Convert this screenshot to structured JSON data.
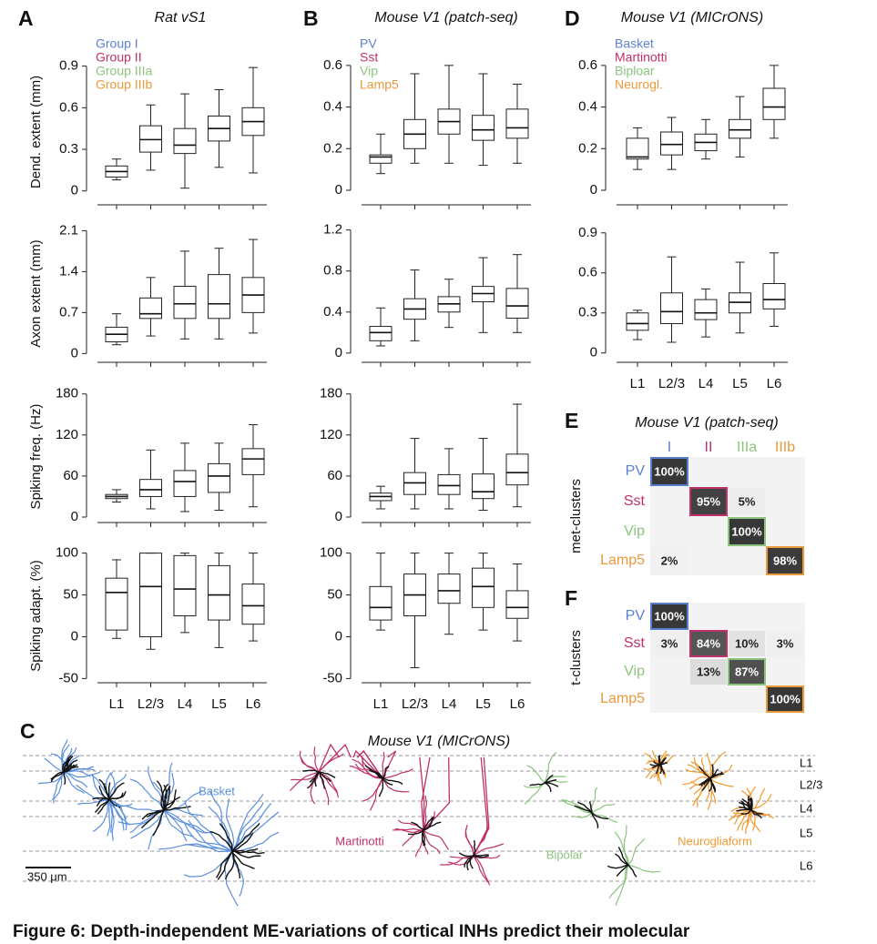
{
  "panel_letters": [
    "A",
    "B",
    "C",
    "D",
    "E",
    "F"
  ],
  "chart_data": [
    {
      "type": "box",
      "title": "Rat vS1",
      "ylabel": "Dend. extent (mm)",
      "categories": [
        null,
        null,
        null,
        null,
        null
      ],
      "ylim": [
        -0.1,
        0.95
      ],
      "yticks": [
        0,
        0.3,
        0.6,
        0.9
      ],
      "legend": [
        {
          "name": "Group I",
          "color": "#5b7fd0"
        },
        {
          "name": "Group II",
          "color": "#c0306a"
        },
        {
          "name": "Group IIIa",
          "color": "#8cc47e"
        },
        {
          "name": "Group IIIb",
          "color": "#e89a3c"
        }
      ],
      "boxes": [
        {
          "low": 0.08,
          "q1": 0.1,
          "median": 0.14,
          "q3": 0.18,
          "high": 0.23
        },
        {
          "low": 0.15,
          "q1": 0.28,
          "median": 0.37,
          "q3": 0.47,
          "high": 0.62
        },
        {
          "low": 0.02,
          "q1": 0.27,
          "median": 0.33,
          "q3": 0.45,
          "high": 0.7
        },
        {
          "low": 0.17,
          "q1": 0.36,
          "median": 0.45,
          "q3": 0.54,
          "high": 0.73
        },
        {
          "low": 0.13,
          "q1": 0.4,
          "median": 0.5,
          "q3": 0.6,
          "high": 0.89
        }
      ]
    },
    {
      "type": "box",
      "ylabel": "Axon extent (mm)",
      "categories": [
        null,
        null,
        null,
        null,
        null
      ],
      "ylim": [
        -0.15,
        2.2
      ],
      "yticks": [
        0,
        0.7,
        1.4,
        2.1
      ],
      "boxes": [
        {
          "low": 0.15,
          "q1": 0.2,
          "median": 0.33,
          "q3": 0.45,
          "high": 0.68
        },
        {
          "low": 0.3,
          "q1": 0.6,
          "median": 0.68,
          "q3": 0.95,
          "high": 1.3
        },
        {
          "low": 0.25,
          "q1": 0.6,
          "median": 0.85,
          "q3": 1.15,
          "high": 1.75
        },
        {
          "low": 0.25,
          "q1": 0.6,
          "median": 0.85,
          "q3": 1.35,
          "high": 1.8
        },
        {
          "low": 0.35,
          "q1": 0.7,
          "median": 1.0,
          "q3": 1.3,
          "high": 1.95
        }
      ]
    },
    {
      "type": "box",
      "ylabel": "Spiking freq. (Hz)",
      "categories": [
        null,
        null,
        null,
        null,
        null
      ],
      "ylim": [
        -8,
        185
      ],
      "yticks": [
        0,
        60,
        120,
        180
      ],
      "boxes": [
        {
          "low": 22,
          "q1": 27,
          "median": 30,
          "q3": 33,
          "high": 40
        },
        {
          "low": 12,
          "q1": 30,
          "median": 40,
          "q3": 55,
          "high": 98
        },
        {
          "low": 8,
          "q1": 30,
          "median": 52,
          "q3": 68,
          "high": 108
        },
        {
          "low": 10,
          "q1": 36,
          "median": 60,
          "q3": 78,
          "high": 108
        },
        {
          "low": 15,
          "q1": 62,
          "median": 85,
          "q3": 100,
          "high": 135
        }
      ]
    },
    {
      "type": "box",
      "ylabel": "Spiking adapt. (%)",
      "categories": [
        "L1",
        "L2/3",
        "L4",
        "L5",
        "L6"
      ],
      "ylim": [
        -55,
        105
      ],
      "yticks": [
        -50,
        0,
        50,
        100
      ],
      "boxes": [
        {
          "low": -2,
          "q1": 8,
          "median": 53,
          "q3": 70,
          "high": 92
        },
        {
          "low": -15,
          "q1": 0,
          "median": 60,
          "q3": 100,
          "high": 100
        },
        {
          "low": 5,
          "q1": 25,
          "median": 57,
          "q3": 97,
          "high": 100
        },
        {
          "low": -13,
          "q1": 20,
          "median": 50,
          "q3": 85,
          "high": 100
        },
        {
          "low": -5,
          "q1": 15,
          "median": 37,
          "q3": 63,
          "high": 100
        }
      ]
    },
    {
      "type": "box",
      "title": "Mouse V1 (patch-seq)",
      "categories": [
        null,
        null,
        null,
        null,
        null
      ],
      "ylim": [
        -0.07,
        0.63
      ],
      "yticks": [
        0,
        0.2,
        0.4,
        0.6
      ],
      "legend": [
        {
          "name": "PV",
          "color": "#5b7fd0"
        },
        {
          "name": "Sst",
          "color": "#c0306a"
        },
        {
          "name": "Vip",
          "color": "#8cc47e"
        },
        {
          "name": "Lamp5",
          "color": "#e89a3c"
        }
      ],
      "boxes": [
        {
          "low": 0.08,
          "q1": 0.13,
          "median": 0.16,
          "q3": 0.17,
          "high": 0.27
        },
        {
          "low": 0.13,
          "q1": 0.2,
          "median": 0.27,
          "q3": 0.34,
          "high": 0.56
        },
        {
          "low": 0.13,
          "q1": 0.27,
          "median": 0.33,
          "q3": 0.39,
          "high": 0.6
        },
        {
          "low": 0.12,
          "q1": 0.24,
          "median": 0.29,
          "q3": 0.36,
          "high": 0.56
        },
        {
          "low": 0.13,
          "q1": 0.25,
          "median": 0.3,
          "q3": 0.39,
          "high": 0.51
        }
      ]
    },
    {
      "type": "box",
      "categories": [
        null,
        null,
        null,
        null,
        null
      ],
      "ylim": [
        -0.09,
        1.25
      ],
      "yticks": [
        0,
        0.4,
        0.8,
        1.2
      ],
      "boxes": [
        {
          "low": 0.07,
          "q1": 0.12,
          "median": 0.2,
          "q3": 0.26,
          "high": 0.44
        },
        {
          "low": 0.12,
          "q1": 0.33,
          "median": 0.43,
          "q3": 0.53,
          "high": 0.81
        },
        {
          "low": 0.25,
          "q1": 0.4,
          "median": 0.48,
          "q3": 0.55,
          "high": 0.72
        },
        {
          "low": 0.2,
          "q1": 0.5,
          "median": 0.58,
          "q3": 0.65,
          "high": 0.93
        },
        {
          "low": 0.2,
          "q1": 0.34,
          "median": 0.46,
          "q3": 0.63,
          "high": 0.96
        }
      ]
    },
    {
      "type": "box",
      "categories": [
        null,
        null,
        null,
        null,
        null
      ],
      "ylim": [
        -8,
        185
      ],
      "yticks": [
        0,
        60,
        120,
        180
      ],
      "boxes": [
        {
          "low": 12,
          "q1": 24,
          "median": 30,
          "q3": 35,
          "high": 45
        },
        {
          "low": 12,
          "q1": 33,
          "median": 50,
          "q3": 65,
          "high": 115
        },
        {
          "low": 12,
          "q1": 33,
          "median": 46,
          "q3": 62,
          "high": 100
        },
        {
          "low": 10,
          "q1": 27,
          "median": 37,
          "q3": 63,
          "high": 115
        },
        {
          "low": 15,
          "q1": 47,
          "median": 65,
          "q3": 92,
          "high": 165
        }
      ]
    },
    {
      "type": "box",
      "categories": [
        "L1",
        "L2/3",
        "L4",
        "L5",
        "L6"
      ],
      "ylim": [
        -55,
        105
      ],
      "yticks": [
        -50,
        0,
        50,
        100
      ],
      "boxes": [
        {
          "low": 8,
          "q1": 20,
          "median": 35,
          "q3": 60,
          "high": 100
        },
        {
          "low": -37,
          "q1": 25,
          "median": 50,
          "q3": 75,
          "high": 100
        },
        {
          "low": 3,
          "q1": 40,
          "median": 55,
          "q3": 75,
          "high": 100
        },
        {
          "low": 8,
          "q1": 35,
          "median": 60,
          "q3": 82,
          "high": 100
        },
        {
          "low": -5,
          "q1": 22,
          "median": 35,
          "q3": 55,
          "high": 87
        }
      ]
    },
    {
      "type": "box",
      "title": "Mouse V1 (MICrONS)",
      "categories": [
        null,
        null,
        null,
        null,
        null
      ],
      "ylim": [
        -0.07,
        0.63
      ],
      "yticks": [
        0,
        0.2,
        0.4,
        0.6
      ],
      "legend": [
        {
          "name": "Basket",
          "color": "#5b7fd0"
        },
        {
          "name": "Martinotti",
          "color": "#c0306a"
        },
        {
          "name": "Biploar",
          "color": "#8cc47e"
        },
        {
          "name": "Neurogl.",
          "color": "#e89a3c"
        }
      ],
      "boxes": [
        {
          "low": 0.1,
          "q1": 0.15,
          "median": 0.16,
          "q3": 0.25,
          "high": 0.3
        },
        {
          "low": 0.1,
          "q1": 0.17,
          "median": 0.22,
          "q3": 0.28,
          "high": 0.35
        },
        {
          "low": 0.15,
          "q1": 0.19,
          "median": 0.23,
          "q3": 0.27,
          "high": 0.34
        },
        {
          "low": 0.16,
          "q1": 0.25,
          "median": 0.29,
          "q3": 0.34,
          "high": 0.45
        },
        {
          "low": 0.25,
          "q1": 0.34,
          "median": 0.4,
          "q3": 0.49,
          "high": 0.6
        }
      ]
    },
    {
      "type": "box",
      "categories": [
        "L1",
        "L2/3",
        "L4",
        "L5",
        "L6"
      ],
      "ylim": [
        -0.07,
        0.96
      ],
      "yticks": [
        0,
        0.3,
        0.6,
        0.9
      ],
      "boxes": [
        {
          "low": 0.1,
          "q1": 0.17,
          "median": 0.22,
          "q3": 0.3,
          "high": 0.32
        },
        {
          "low": 0.08,
          "q1": 0.22,
          "median": 0.31,
          "q3": 0.45,
          "high": 0.72
        },
        {
          "low": 0.12,
          "q1": 0.25,
          "median": 0.3,
          "q3": 0.4,
          "high": 0.48
        },
        {
          "low": 0.15,
          "q1": 0.3,
          "median": 0.38,
          "q3": 0.45,
          "high": 0.68
        },
        {
          "low": 0.2,
          "q1": 0.33,
          "median": 0.4,
          "q3": 0.52,
          "high": 0.75
        }
      ]
    },
    {
      "type": "heatmap",
      "title": "Mouse V1 (patch-seq)",
      "ylabel": "met-clusters",
      "categories": [
        "I",
        "II",
        "IIIa",
        "IIIb"
      ],
      "category_colors": [
        "#5b7fd0",
        "#c0306a",
        "#8cc47e",
        "#e89a3c"
      ],
      "rows": [
        "PV",
        "Sst",
        "Vip",
        "Lamp5"
      ],
      "row_colors": [
        "#5b7fd0",
        "#c0306a",
        "#8cc47e",
        "#e89a3c"
      ],
      "values": [
        [
          100,
          null,
          null,
          null
        ],
        [
          null,
          95,
          5,
          null
        ],
        [
          null,
          null,
          100,
          null
        ],
        [
          2,
          null,
          null,
          98
        ]
      ],
      "value_labels": [
        [
          "100%",
          null,
          null,
          null
        ],
        [
          null,
          "95%",
          "5%",
          null
        ],
        [
          null,
          null,
          "100%",
          null
        ],
        [
          "2%",
          null,
          null,
          "98%"
        ]
      ]
    },
    {
      "type": "heatmap",
      "ylabel": "t-clusters",
      "rows": [
        "PV",
        "Sst",
        "Vip",
        "Lamp5"
      ],
      "row_colors": [
        "#5b7fd0",
        "#c0306a",
        "#8cc47e",
        "#e89a3c"
      ],
      "values": [
        [
          100,
          null,
          null,
          null
        ],
        [
          3,
          84,
          10,
          3
        ],
        [
          null,
          13,
          87,
          null
        ],
        [
          null,
          null,
          null,
          100
        ]
      ],
      "value_labels": [
        [
          "100%",
          null,
          null,
          null
        ],
        [
          "3%",
          "84%",
          "10%",
          "3%"
        ],
        [
          null,
          "13%",
          "87%",
          null
        ],
        [
          null,
          null,
          null,
          "100%"
        ]
      ]
    }
  ],
  "diagram": {
    "title": "Mouse V1 (MICrONS)",
    "layers": [
      "L1",
      "L2/3",
      "L4",
      "L5",
      "L6"
    ],
    "cell_types": [
      {
        "label": "Basket",
        "color": "#5b8fdc"
      },
      {
        "label": "Martinotti",
        "color": "#c0306a"
      },
      {
        "label": "Bipolar",
        "color": "#8cc47e"
      },
      {
        "label": "Neurogliaform",
        "color": "#ef9a30"
      }
    ],
    "scale_bar": "350 μm"
  },
  "caption": "Figure 6: Depth-independent ME-variations of cortical INHs predict their molecular"
}
